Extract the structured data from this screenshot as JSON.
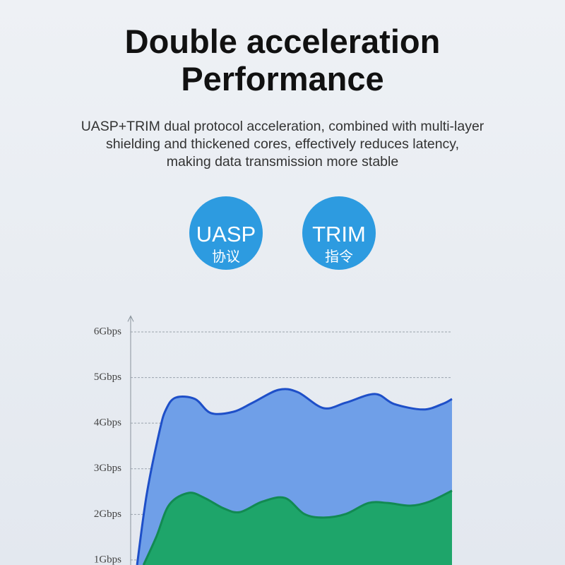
{
  "chart_data": {
    "type": "area",
    "title": [
      "Double acceleration",
      "Performance"
    ],
    "subtitle": [
      "UASP+TRIM dual protocol acceleration, combined with multi-layer",
      "shielding and thickened cores, effectively reduces latency,",
      "making data transmission more stable"
    ],
    "xlim": [
      0,
      100
    ],
    "ylim": [
      0.89,
      6.35
    ],
    "yticks": [
      {
        "value": 1,
        "label": "1Gbps"
      },
      {
        "value": 2,
        "label": "2Gbps"
      },
      {
        "value": 3,
        "label": "3Gbps"
      },
      {
        "value": 4,
        "label": "4Gbps"
      },
      {
        "value": 5,
        "label": "5Gbps"
      },
      {
        "value": 6,
        "label": "6Gbps"
      }
    ],
    "grid": true,
    "series": [
      {
        "color": "#1e4fc8",
        "fill": "#6f9fe8",
        "x": [
          2,
          5,
          9,
          11,
          14,
          20,
          25,
          32,
          38,
          46,
          52,
          60,
          67,
          76,
          82,
          91,
          97,
          100
        ],
        "values": [
          0.89,
          2.44,
          3.83,
          4.3,
          4.56,
          4.53,
          4.22,
          4.25,
          4.45,
          4.73,
          4.68,
          4.33,
          4.45,
          4.64,
          4.42,
          4.3,
          4.42,
          4.53
        ]
      },
      {
        "color": "#128a52",
        "fill": "#1ea56a",
        "x": [
          4,
          8,
          12,
          18,
          23,
          29,
          34,
          41,
          48,
          54,
          60,
          67,
          74,
          80,
          87,
          93,
          100
        ],
        "values": [
          0.89,
          1.51,
          2.21,
          2.47,
          2.36,
          2.13,
          2.05,
          2.28,
          2.36,
          2.01,
          1.93,
          2.01,
          2.25,
          2.25,
          2.19,
          2.28,
          2.52
        ]
      }
    ]
  },
  "badges": [
    {
      "title": "UASP",
      "subtitle": "协议"
    },
    {
      "title": "TRIM",
      "subtitle": "指令"
    }
  ]
}
